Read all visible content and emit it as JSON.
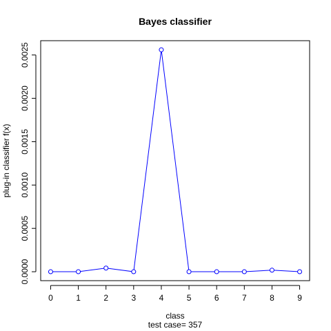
{
  "chart_data": {
    "type": "line",
    "title": "Bayes classifier",
    "xlabel": "class",
    "subtitle": "test case= 357",
    "ylabel": "plug-in classifier f(x)",
    "x": [
      0,
      1,
      2,
      3,
      4,
      5,
      6,
      7,
      8,
      9
    ],
    "x_ticks": [
      "0",
      "1",
      "2",
      "3",
      "4",
      "5",
      "6",
      "7",
      "8",
      "9"
    ],
    "xlim": [
      -0.36,
      9.36
    ],
    "ylim": [
      -0.000103,
      0.002665
    ],
    "y_ticks": [
      "0.0000",
      "0.0005",
      "0.0010",
      "0.0015",
      "0.0020",
      "0.0025"
    ],
    "y_tick_values": [
      0,
      0.0005,
      0.001,
      0.0015,
      0.002,
      0.0025
    ],
    "series": [
      {
        "values": [
          1e-07,
          2e-07,
          4.2e-05,
          1e-07,
          0.00256,
          2e-07,
          1e-07,
          1e-07,
          1.8e-05,
          2e-07
        ],
        "color": "#0000ff",
        "style": "line-with-open-circles"
      }
    ],
    "grid": false,
    "legend": "none"
  }
}
